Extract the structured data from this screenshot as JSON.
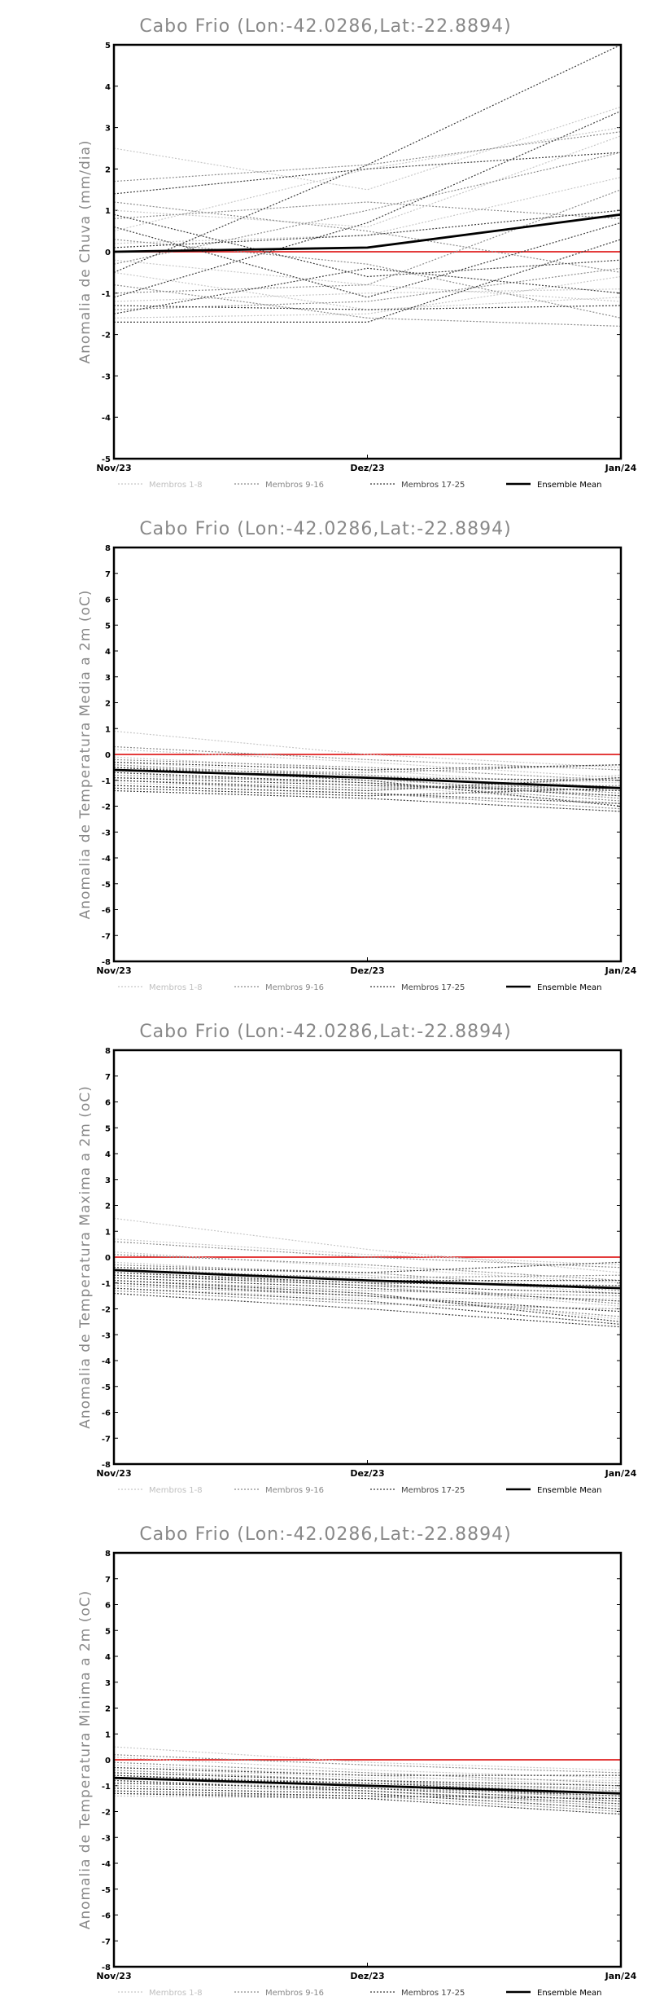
{
  "chart_data": [
    {
      "type": "line",
      "title": "Cabo Frio (Lon:-42.0286,Lat:-22.8894)",
      "xlabel": "",
      "ylabel": "Anomalia de Chuva (mm/dia)",
      "categories": [
        "Nov/23",
        "Dez/23",
        "Jan/24"
      ],
      "ylim": [
        -5,
        5
      ],
      "yticks": [
        -5,
        -4,
        -3,
        -2,
        -1,
        0,
        1,
        2,
        3,
        4,
        5
      ],
      "reference_line": 0,
      "reference_color": "#e02020",
      "legend": [
        "Membros 1-8",
        "Membros 9-16",
        "Membros 17-25",
        "Ensemble Mean"
      ],
      "series": [
        {
          "group": "1-8",
          "values": [
            2.5,
            1.5,
            3.5
          ]
        },
        {
          "group": "1-8",
          "values": [
            0.5,
            2.0,
            3.0
          ]
        },
        {
          "group": "1-8",
          "values": [
            -0.2,
            -0.8,
            -1.2
          ]
        },
        {
          "group": "1-8",
          "values": [
            1.0,
            0.6,
            2.8
          ]
        },
        {
          "group": "1-8",
          "values": [
            -1.6,
            -1.5,
            -0.6
          ]
        },
        {
          "group": "1-8",
          "values": [
            0.2,
            0.4,
            1.8
          ]
        },
        {
          "group": "1-8",
          "values": [
            -1.2,
            -1.0,
            -0.9
          ]
        },
        {
          "group": "1-8",
          "values": [
            -0.5,
            -1.4,
            -1.1
          ]
        },
        {
          "group": "9-16",
          "values": [
            1.7,
            2.1,
            2.9
          ]
        },
        {
          "group": "9-16",
          "values": [
            -0.3,
            1.0,
            2.4
          ]
        },
        {
          "group": "9-16",
          "values": [
            1.2,
            0.5,
            -0.5
          ]
        },
        {
          "group": "9-16",
          "values": [
            -1.0,
            -0.8,
            1.5
          ]
        },
        {
          "group": "9-16",
          "values": [
            0.3,
            -0.3,
            -1.6
          ]
        },
        {
          "group": "9-16",
          "values": [
            -1.4,
            -1.2,
            -0.4
          ]
        },
        {
          "group": "9-16",
          "values": [
            0.8,
            1.2,
            0.8
          ]
        },
        {
          "group": "9-16",
          "values": [
            -0.8,
            -1.6,
            -1.8
          ]
        },
        {
          "group": "17-25",
          "values": [
            -0.5,
            2.1,
            5.0
          ]
        },
        {
          "group": "17-25",
          "values": [
            -1.1,
            0.7,
            3.4
          ]
        },
        {
          "group": "17-25",
          "values": [
            0.6,
            -1.1,
            0.7
          ]
        },
        {
          "group": "17-25",
          "values": [
            1.4,
            2.0,
            2.4
          ]
        },
        {
          "group": "17-25",
          "values": [
            -1.3,
            -1.4,
            -1.3
          ]
        },
        {
          "group": "17-25",
          "values": [
            0.9,
            -0.6,
            -0.2
          ]
        },
        {
          "group": "17-25",
          "values": [
            -1.7,
            -1.7,
            0.3
          ]
        },
        {
          "group": "17-25",
          "values": [
            0.1,
            0.4,
            1.0
          ]
        },
        {
          "group": "17-25",
          "values": [
            -1.5,
            -0.4,
            -1.0
          ]
        },
        {
          "group": "mean",
          "name": "Ensemble Mean",
          "values": [
            0.0,
            0.1,
            0.9
          ]
        }
      ]
    },
    {
      "type": "line",
      "title": "Cabo Frio (Lon:-42.0286,Lat:-22.8894)",
      "xlabel": "",
      "ylabel": "Anomalia de Temperatura Media a 2m (oC)",
      "categories": [
        "Nov/23",
        "Dez/23",
        "Jan/24"
      ],
      "ylim": [
        -8,
        8
      ],
      "yticks": [
        -8,
        -7,
        -6,
        -5,
        -4,
        -3,
        -2,
        -1,
        0,
        1,
        2,
        3,
        4,
        5,
        6,
        7,
        8
      ],
      "reference_line": 0,
      "reference_color": "#e02020",
      "legend": [
        "Membros 1-8",
        "Membros 9-16",
        "Membros 17-25",
        "Ensemble Mean"
      ],
      "series": [
        {
          "group": "1-8",
          "values": [
            0.9,
            0.0,
            -0.5
          ]
        },
        {
          "group": "1-8",
          "values": [
            0.2,
            -0.3,
            -0.9
          ]
        },
        {
          "group": "1-8",
          "values": [
            -0.1,
            -0.6,
            -1.3
          ]
        },
        {
          "group": "1-8",
          "values": [
            -0.4,
            -0.9,
            -1.6
          ]
        },
        {
          "group": "1-8",
          "values": [
            -0.7,
            -1.2,
            -1.9
          ]
        },
        {
          "group": "1-8",
          "values": [
            -1.1,
            -1.4,
            -0.8
          ]
        },
        {
          "group": "1-8",
          "values": [
            -0.3,
            -0.8,
            -1.1
          ]
        },
        {
          "group": "1-8",
          "values": [
            -0.9,
            -1.0,
            -1.4
          ]
        },
        {
          "group": "9-16",
          "values": [
            0.3,
            -0.2,
            -0.6
          ]
        },
        {
          "group": "9-16",
          "values": [
            -0.2,
            -0.5,
            -1.0
          ]
        },
        {
          "group": "9-16",
          "values": [
            -0.5,
            -0.8,
            -1.5
          ]
        },
        {
          "group": "9-16",
          "values": [
            -0.8,
            -1.1,
            -1.8
          ]
        },
        {
          "group": "9-16",
          "values": [
            -1.2,
            -1.5,
            -2.1
          ]
        },
        {
          "group": "9-16",
          "values": [
            -0.6,
            -0.7,
            -0.4
          ]
        },
        {
          "group": "9-16",
          "values": [
            -1.0,
            -1.3,
            -1.2
          ]
        },
        {
          "group": "9-16",
          "values": [
            -0.4,
            -0.9,
            -1.7
          ]
        },
        {
          "group": "17-25",
          "values": [
            -0.3,
            -0.6,
            -0.4
          ]
        },
        {
          "group": "17-25",
          "values": [
            -0.6,
            -0.9,
            -1.0
          ]
        },
        {
          "group": "17-25",
          "values": [
            -0.9,
            -1.2,
            -1.4
          ]
        },
        {
          "group": "17-25",
          "values": [
            -1.2,
            -1.5,
            -1.9
          ]
        },
        {
          "group": "17-25",
          "values": [
            -1.4,
            -1.7,
            -2.2
          ]
        },
        {
          "group": "17-25",
          "values": [
            -0.7,
            -1.1,
            -1.6
          ]
        },
        {
          "group": "17-25",
          "values": [
            -1.0,
            -1.4,
            -0.9
          ]
        },
        {
          "group": "17-25",
          "values": [
            -0.5,
            -1.0,
            -2.0
          ]
        },
        {
          "group": "17-25",
          "values": [
            -1.3,
            -1.6,
            -1.3
          ]
        },
        {
          "group": "mean",
          "name": "Ensemble Mean",
          "values": [
            -0.6,
            -0.9,
            -1.3
          ]
        }
      ]
    },
    {
      "type": "line",
      "title": "Cabo Frio (Lon:-42.0286,Lat:-22.8894)",
      "xlabel": "",
      "ylabel": "Anomalia de Temperatura Maxima a 2m (oC)",
      "categories": [
        "Nov/23",
        "Dez/23",
        "Jan/24"
      ],
      "ylim": [
        -8,
        8
      ],
      "yticks": [
        -8,
        -7,
        -6,
        -5,
        -4,
        -3,
        -2,
        -1,
        0,
        1,
        2,
        3,
        4,
        5,
        6,
        7,
        8
      ],
      "reference_line": 0,
      "reference_color": "#e02020",
      "legend": [
        "Membros 1-8",
        "Membros 9-16",
        "Membros 17-25",
        "Ensemble Mean"
      ],
      "series": [
        {
          "group": "1-8",
          "values": [
            1.5,
            0.3,
            -0.6
          ]
        },
        {
          "group": "1-8",
          "values": [
            0.7,
            0.1,
            -0.3
          ]
        },
        {
          "group": "1-8",
          "values": [
            0.2,
            -0.4,
            -1.0
          ]
        },
        {
          "group": "1-8",
          "values": [
            -0.2,
            -0.7,
            -1.4
          ]
        },
        {
          "group": "1-8",
          "values": [
            -0.6,
            -1.1,
            -1.9
          ]
        },
        {
          "group": "1-8",
          "values": [
            -1.0,
            -1.4,
            -2.4
          ]
        },
        {
          "group": "1-8",
          "values": [
            -0.4,
            -0.9,
            -1.2
          ]
        },
        {
          "group": "1-8",
          "values": [
            -1.2,
            -1.6,
            -1.6
          ]
        },
        {
          "group": "9-16",
          "values": [
            0.6,
            0.0,
            -0.4
          ]
        },
        {
          "group": "9-16",
          "values": [
            0.1,
            -0.3,
            -0.9
          ]
        },
        {
          "group": "9-16",
          "values": [
            -0.3,
            -0.6,
            -1.3
          ]
        },
        {
          "group": "9-16",
          "values": [
            -0.7,
            -1.0,
            -1.8
          ]
        },
        {
          "group": "9-16",
          "values": [
            -1.1,
            -1.5,
            -2.3
          ]
        },
        {
          "group": "9-16",
          "values": [
            -0.5,
            -0.8,
            -0.7
          ]
        },
        {
          "group": "9-16",
          "values": [
            -0.9,
            -1.3,
            -1.5
          ]
        },
        {
          "group": "9-16",
          "values": [
            -1.3,
            -1.8,
            -2.0
          ]
        },
        {
          "group": "17-25",
          "values": [
            -0.4,
            -0.6,
            -0.2
          ]
        },
        {
          "group": "17-25",
          "values": [
            -0.6,
            -1.0,
            -1.1
          ]
        },
        {
          "group": "17-25",
          "values": [
            -0.8,
            -1.2,
            -1.7
          ]
        },
        {
          "group": "17-25",
          "values": [
            -1.0,
            -1.5,
            -2.1
          ]
        },
        {
          "group": "17-25",
          "values": [
            -1.2,
            -1.7,
            -2.6
          ]
        },
        {
          "group": "17-25",
          "values": [
            -1.4,
            -2.0,
            -2.7
          ]
        },
        {
          "group": "17-25",
          "values": [
            -0.7,
            -1.1,
            -1.4
          ]
        },
        {
          "group": "17-25",
          "values": [
            -0.9,
            -1.4,
            -2.5
          ]
        },
        {
          "group": "17-25",
          "values": [
            -0.5,
            -0.9,
            -0.9
          ]
        },
        {
          "group": "mean",
          "name": "Ensemble Mean",
          "values": [
            -0.5,
            -0.9,
            -1.2
          ]
        }
      ]
    },
    {
      "type": "line",
      "title": "Cabo Frio (Lon:-42.0286,Lat:-22.8894)",
      "xlabel": "",
      "ylabel": "Anomalia de Temperatura Minima a 2m (oC)",
      "categories": [
        "Nov/23",
        "Dez/23",
        "Jan/24"
      ],
      "ylim": [
        -8,
        8
      ],
      "yticks": [
        -8,
        -7,
        -6,
        -5,
        -4,
        -3,
        -2,
        -1,
        0,
        1,
        2,
        3,
        4,
        5,
        6,
        7,
        8
      ],
      "reference_line": 0,
      "reference_color": "#e02020",
      "legend": [
        "Membros 1-8",
        "Membros 9-16",
        "Membros 17-25",
        "Ensemble Mean"
      ],
      "series": [
        {
          "group": "1-8",
          "values": [
            0.5,
            -0.1,
            -0.4
          ]
        },
        {
          "group": "1-8",
          "values": [
            0.1,
            -0.4,
            -0.7
          ]
        },
        {
          "group": "1-8",
          "values": [
            -0.2,
            -0.6,
            -1.0
          ]
        },
        {
          "group": "1-8",
          "values": [
            -0.5,
            -0.8,
            -1.3
          ]
        },
        {
          "group": "1-8",
          "values": [
            -0.8,
            -1.1,
            -1.6
          ]
        },
        {
          "group": "1-8",
          "values": [
            -1.1,
            -1.3,
            -1.9
          ]
        },
        {
          "group": "1-8",
          "values": [
            -1.4,
            -1.5,
            -1.2
          ]
        },
        {
          "group": "1-8",
          "values": [
            -0.3,
            -0.7,
            -0.8
          ]
        },
        {
          "group": "9-16",
          "values": [
            0.2,
            -0.2,
            -0.5
          ]
        },
        {
          "group": "9-16",
          "values": [
            -0.1,
            -0.5,
            -0.9
          ]
        },
        {
          "group": "9-16",
          "values": [
            -0.4,
            -0.8,
            -1.2
          ]
        },
        {
          "group": "9-16",
          "values": [
            -0.7,
            -1.0,
            -1.5
          ]
        },
        {
          "group": "9-16",
          "values": [
            -1.0,
            -1.2,
            -1.8
          ]
        },
        {
          "group": "9-16",
          "values": [
            -1.3,
            -1.4,
            -2.0
          ]
        },
        {
          "group": "9-16",
          "values": [
            -0.6,
            -0.9,
            -1.1
          ]
        },
        {
          "group": "9-16",
          "values": [
            -0.9,
            -1.1,
            -1.4
          ]
        },
        {
          "group": "17-25",
          "values": [
            -0.3,
            -0.6,
            -0.6
          ]
        },
        {
          "group": "17-25",
          "values": [
            -0.5,
            -0.8,
            -1.0
          ]
        },
        {
          "group": "17-25",
          "values": [
            -0.7,
            -0.9,
            -1.3
          ]
        },
        {
          "group": "17-25",
          "values": [
            -0.9,
            -1.1,
            -1.6
          ]
        },
        {
          "group": "17-25",
          "values": [
            -1.1,
            -1.3,
            -1.9
          ]
        },
        {
          "group": "17-25",
          "values": [
            -1.3,
            -1.5,
            -2.1
          ]
        },
        {
          "group": "17-25",
          "values": [
            -0.6,
            -1.0,
            -1.4
          ]
        },
        {
          "group": "17-25",
          "values": [
            -0.8,
            -1.2,
            -1.7
          ]
        },
        {
          "group": "17-25",
          "values": [
            -1.2,
            -1.4,
            -1.5
          ]
        },
        {
          "group": "mean",
          "name": "Ensemble Mean",
          "values": [
            -0.7,
            -1.0,
            -1.3
          ]
        }
      ]
    }
  ]
}
